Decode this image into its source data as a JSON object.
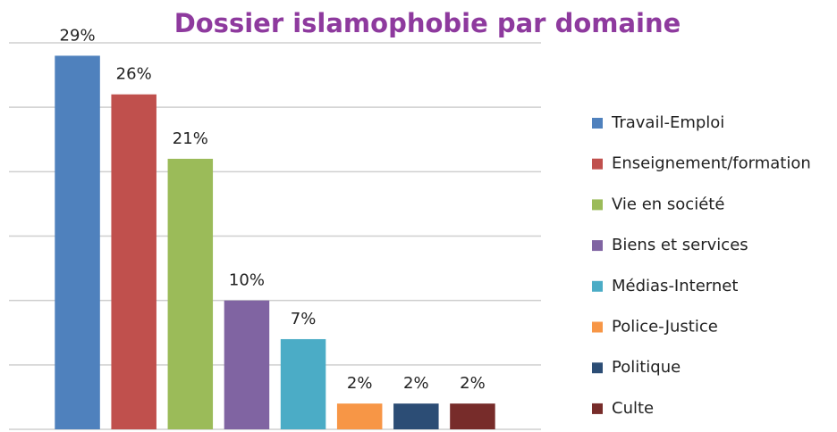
{
  "chart_data": {
    "type": "bar",
    "title": "Dossier islamophobie par domaine",
    "categories": [
      "Travail-Emploi",
      "Enseignement/formation",
      "Vie en société",
      "Biens et services",
      "Médias-Internet",
      "Police-Justice",
      "Politique",
      "Culte"
    ],
    "values": [
      29,
      26,
      21,
      10,
      7,
      2,
      2,
      2
    ],
    "value_labels": [
      "29%",
      "26%",
      "21%",
      "10%",
      "7%",
      "2%",
      "2%",
      "2%"
    ],
    "colors": [
      "#4f81bd",
      "#c0504d",
      "#9bbb59",
      "#8064a2",
      "#4bacc6",
      "#f79646",
      "#2c4d75",
      "#772c2a"
    ],
    "ylim": [
      0,
      30
    ],
    "yticks": [
      0,
      5,
      10,
      15,
      20,
      25,
      30
    ],
    "grid": true,
    "legend": "right"
  }
}
